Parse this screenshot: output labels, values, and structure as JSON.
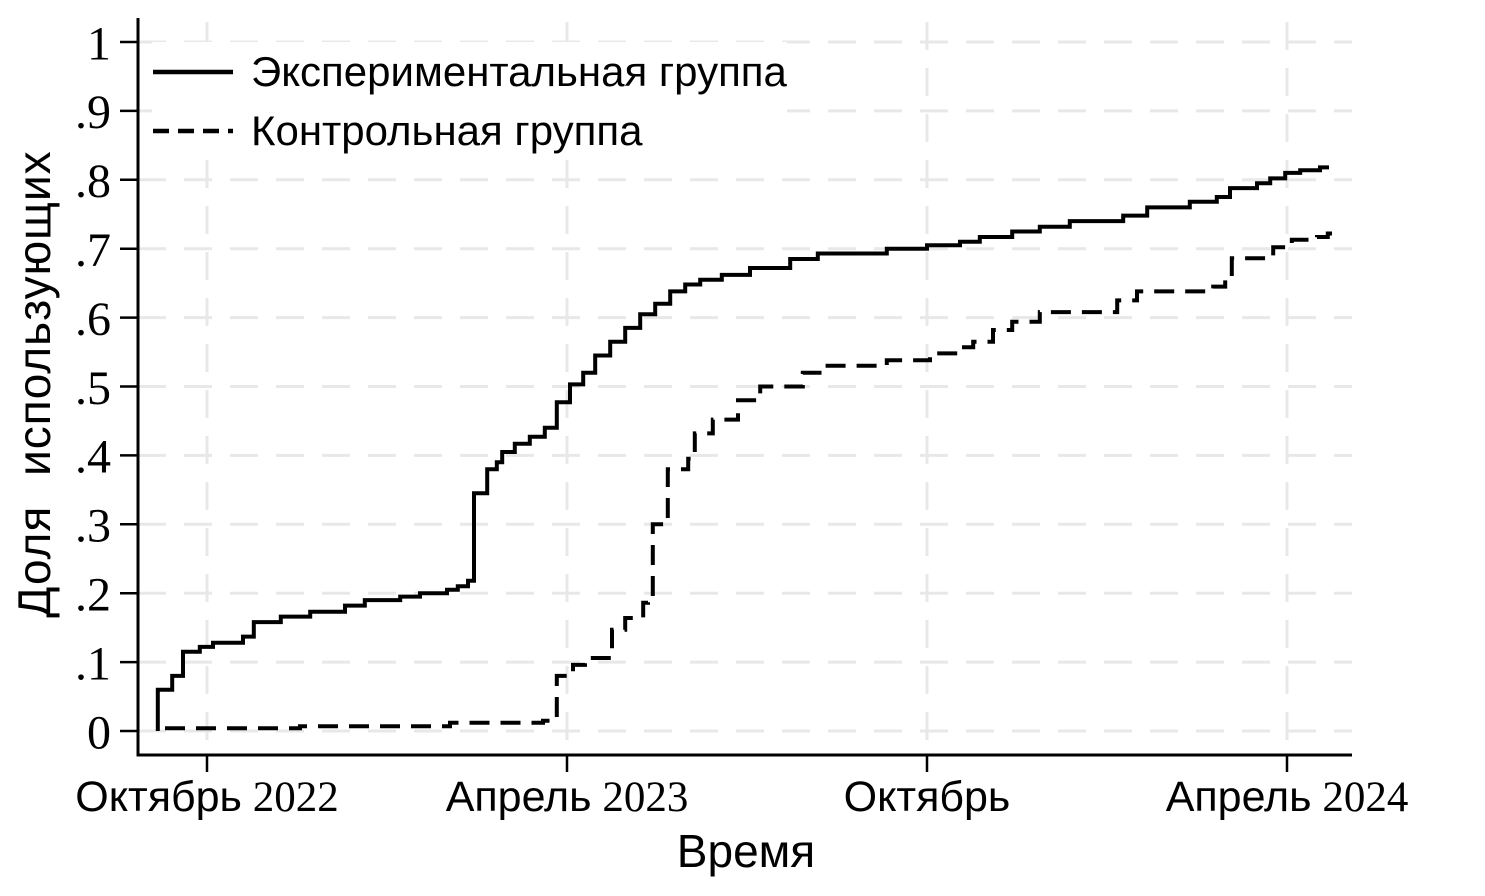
{
  "chart_data": {
    "type": "line",
    "subtype": "step",
    "title": "",
    "xlabel": "Время",
    "ylabel": "Доля использующих",
    "legend_position": "top-left-inside",
    "grid": "both-dashed",
    "colors": {
      "line": "#000000",
      "axis": "#000000",
      "grid": "#e8e8e8",
      "background": "#ffffff"
    },
    "x_axis": {
      "unit": "months relative to Октябрь 2022 tick",
      "range": [
        -1.15,
        19.08
      ],
      "ticks": [
        {
          "pos": 0,
          "label": "Октябрь 2022"
        },
        {
          "pos": 6,
          "label": "Апрель 2023"
        },
        {
          "pos": 12,
          "label": "Октябрь"
        },
        {
          "pos": 18,
          "label": "Апрель 2024"
        }
      ]
    },
    "y_axis": {
      "range": [
        0,
        1
      ],
      "ticks": [
        {
          "pos": 0,
          "label": "0"
        },
        {
          "pos": 0.1,
          "label": ".1"
        },
        {
          "pos": 0.2,
          "label": ".2"
        },
        {
          "pos": 0.3,
          "label": ".3"
        },
        {
          "pos": 0.4,
          "label": ".4"
        },
        {
          "pos": 0.5,
          "label": ".5"
        },
        {
          "pos": 0.6,
          "label": ".6"
        },
        {
          "pos": 0.7,
          "label": ".7"
        },
        {
          "pos": 0.8,
          "label": ".8"
        },
        {
          "pos": 0.9,
          "label": ".9"
        },
        {
          "pos": 1,
          "label": "1"
        }
      ]
    },
    "series": [
      {
        "name": "Экспериментальная группа",
        "line": "solid",
        "color": "#000000",
        "points": [
          [
            -0.82,
            0
          ],
          [
            -0.82,
            0.06
          ],
          [
            -0.58,
            0.06
          ],
          [
            -0.58,
            0.08
          ],
          [
            -0.4,
            0.08
          ],
          [
            -0.4,
            0.115
          ],
          [
            -0.12,
            0.115
          ],
          [
            -0.12,
            0.122
          ],
          [
            0.1,
            0.122
          ],
          [
            0.1,
            0.128
          ],
          [
            0.6,
            0.128
          ],
          [
            0.6,
            0.137
          ],
          [
            0.78,
            0.137
          ],
          [
            0.78,
            0.158
          ],
          [
            1.23,
            0.158
          ],
          [
            1.23,
            0.166
          ],
          [
            1.72,
            0.166
          ],
          [
            1.72,
            0.173
          ],
          [
            2.3,
            0.173
          ],
          [
            2.3,
            0.182
          ],
          [
            2.63,
            0.182
          ],
          [
            2.63,
            0.19
          ],
          [
            3.22,
            0.19
          ],
          [
            3.22,
            0.195
          ],
          [
            3.55,
            0.195
          ],
          [
            3.55,
            0.2
          ],
          [
            4.0,
            0.2
          ],
          [
            4.0,
            0.205
          ],
          [
            4.18,
            0.205
          ],
          [
            4.18,
            0.21
          ],
          [
            4.35,
            0.21
          ],
          [
            4.35,
            0.218
          ],
          [
            4.45,
            0.218
          ],
          [
            4.45,
            0.345
          ],
          [
            4.67,
            0.345
          ],
          [
            4.67,
            0.38
          ],
          [
            4.83,
            0.38
          ],
          [
            4.83,
            0.39
          ],
          [
            4.92,
            0.39
          ],
          [
            4.92,
            0.405
          ],
          [
            5.13,
            0.405
          ],
          [
            5.13,
            0.417
          ],
          [
            5.38,
            0.417
          ],
          [
            5.38,
            0.427
          ],
          [
            5.63,
            0.427
          ],
          [
            5.63,
            0.44
          ],
          [
            5.83,
            0.44
          ],
          [
            5.83,
            0.477
          ],
          [
            6.05,
            0.477
          ],
          [
            6.05,
            0.503
          ],
          [
            6.27,
            0.503
          ],
          [
            6.27,
            0.52
          ],
          [
            6.47,
            0.52
          ],
          [
            6.47,
            0.545
          ],
          [
            6.72,
            0.545
          ],
          [
            6.72,
            0.565
          ],
          [
            6.97,
            0.565
          ],
          [
            6.97,
            0.585
          ],
          [
            7.22,
            0.585
          ],
          [
            7.22,
            0.605
          ],
          [
            7.47,
            0.605
          ],
          [
            7.47,
            0.62
          ],
          [
            7.72,
            0.62
          ],
          [
            7.72,
            0.638
          ],
          [
            7.97,
            0.638
          ],
          [
            7.97,
            0.648
          ],
          [
            8.22,
            0.648
          ],
          [
            8.22,
            0.655
          ],
          [
            8.58,
            0.655
          ],
          [
            8.58,
            0.662
          ],
          [
            9.05,
            0.662
          ],
          [
            9.05,
            0.672
          ],
          [
            9.72,
            0.672
          ],
          [
            9.72,
            0.685
          ],
          [
            10.18,
            0.685
          ],
          [
            10.18,
            0.693
          ],
          [
            11.33,
            0.693
          ],
          [
            11.33,
            0.7
          ],
          [
            12.0,
            0.7
          ],
          [
            12.0,
            0.705
          ],
          [
            12.55,
            0.705
          ],
          [
            12.55,
            0.71
          ],
          [
            12.88,
            0.71
          ],
          [
            12.88,
            0.717
          ],
          [
            13.42,
            0.717
          ],
          [
            13.42,
            0.725
          ],
          [
            13.88,
            0.725
          ],
          [
            13.88,
            0.732
          ],
          [
            14.38,
            0.732
          ],
          [
            14.38,
            0.74
          ],
          [
            15.27,
            0.74
          ],
          [
            15.27,
            0.748
          ],
          [
            15.67,
            0.748
          ],
          [
            15.67,
            0.76
          ],
          [
            16.38,
            0.76
          ],
          [
            16.38,
            0.768
          ],
          [
            16.83,
            0.768
          ],
          [
            16.83,
            0.775
          ],
          [
            17.05,
            0.775
          ],
          [
            17.05,
            0.788
          ],
          [
            17.5,
            0.788
          ],
          [
            17.5,
            0.795
          ],
          [
            17.72,
            0.795
          ],
          [
            17.72,
            0.802
          ],
          [
            17.97,
            0.802
          ],
          [
            17.97,
            0.81
          ],
          [
            18.22,
            0.81
          ],
          [
            18.22,
            0.814
          ],
          [
            18.55,
            0.814
          ],
          [
            18.55,
            0.818
          ],
          [
            18.7,
            0.818
          ]
        ]
      },
      {
        "name": "Контрольная группа",
        "line": "dashed",
        "color": "#000000",
        "points": [
          [
            -0.7,
            0.004
          ],
          [
            1.55,
            0.004
          ],
          [
            1.55,
            0.007
          ],
          [
            4.05,
            0.007
          ],
          [
            4.05,
            0.012
          ],
          [
            5.6,
            0.012
          ],
          [
            5.6,
            0.015
          ],
          [
            5.83,
            0.015
          ],
          [
            5.83,
            0.08
          ],
          [
            6.1,
            0.08
          ],
          [
            6.1,
            0.096
          ],
          [
            6.3,
            0.096
          ],
          [
            6.3,
            0.106
          ],
          [
            6.75,
            0.106
          ],
          [
            6.75,
            0.147
          ],
          [
            6.97,
            0.147
          ],
          [
            6.97,
            0.164
          ],
          [
            7.27,
            0.164
          ],
          [
            7.27,
            0.186
          ],
          [
            7.35,
            0.186
          ],
          [
            7.35,
            0.195
          ],
          [
            7.43,
            0.195
          ],
          [
            7.43,
            0.3
          ],
          [
            7.68,
            0.3
          ],
          [
            7.68,
            0.38
          ],
          [
            8.02,
            0.38
          ],
          [
            8.02,
            0.395
          ],
          [
            8.13,
            0.395
          ],
          [
            8.13,
            0.432
          ],
          [
            8.43,
            0.432
          ],
          [
            8.43,
            0.452
          ],
          [
            8.85,
            0.452
          ],
          [
            8.85,
            0.48
          ],
          [
            9.22,
            0.48
          ],
          [
            9.22,
            0.5
          ],
          [
            9.93,
            0.5
          ],
          [
            9.93,
            0.52
          ],
          [
            10.27,
            0.52
          ],
          [
            10.27,
            0.53
          ],
          [
            11.33,
            0.53
          ],
          [
            11.33,
            0.538
          ],
          [
            12.05,
            0.538
          ],
          [
            12.05,
            0.548
          ],
          [
            12.47,
            0.548
          ],
          [
            12.47,
            0.557
          ],
          [
            12.77,
            0.557
          ],
          [
            12.77,
            0.565
          ],
          [
            13.1,
            0.565
          ],
          [
            13.1,
            0.582
          ],
          [
            13.42,
            0.582
          ],
          [
            13.42,
            0.594
          ],
          [
            13.88,
            0.594
          ],
          [
            13.88,
            0.608
          ],
          [
            15.17,
            0.608
          ],
          [
            15.17,
            0.625
          ],
          [
            15.5,
            0.625
          ],
          [
            15.5,
            0.638
          ],
          [
            16.77,
            0.638
          ],
          [
            16.77,
            0.645
          ],
          [
            16.97,
            0.645
          ],
          [
            16.97,
            0.655
          ],
          [
            17.08,
            0.655
          ],
          [
            17.08,
            0.686
          ],
          [
            17.77,
            0.686
          ],
          [
            17.77,
            0.702
          ],
          [
            18.08,
            0.702
          ],
          [
            18.08,
            0.713
          ],
          [
            18.5,
            0.713
          ],
          [
            18.5,
            0.717
          ],
          [
            18.68,
            0.717
          ],
          [
            18.68,
            0.722
          ],
          [
            18.75,
            0.722
          ]
        ]
      }
    ]
  }
}
